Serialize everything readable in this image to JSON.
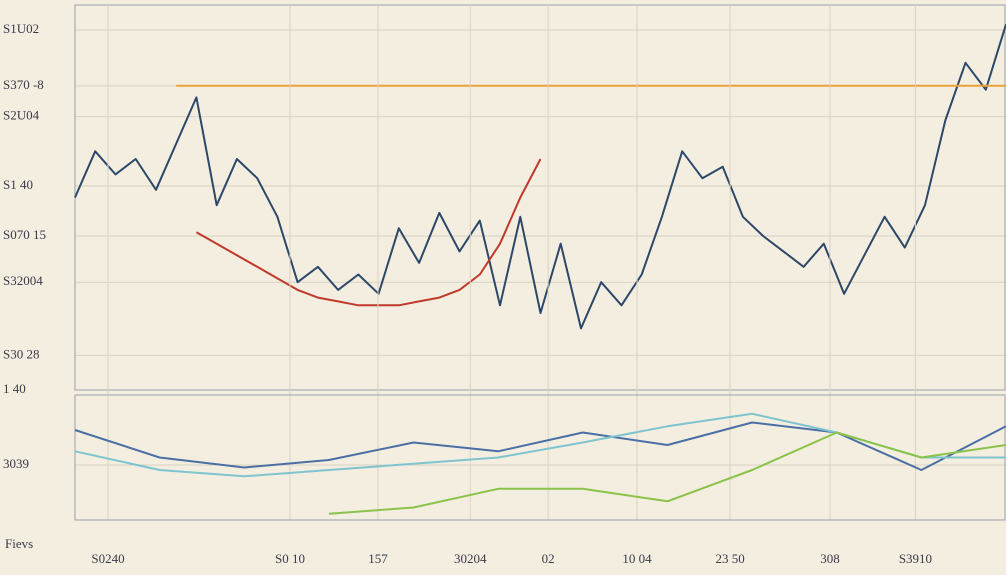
{
  "chart_data": [
    {
      "type": "line",
      "x": [
        0,
        1,
        2,
        3,
        4,
        5,
        6,
        7,
        8,
        9,
        10,
        11,
        12,
        13,
        14,
        15,
        16,
        17,
        18,
        19,
        20,
        21,
        22,
        23,
        24,
        25,
        26,
        27,
        28,
        29,
        30,
        31,
        32,
        33,
        34,
        35,
        36,
        37,
        38,
        39,
        40,
        41,
        42,
        43,
        44,
        45,
        46
      ],
      "xlim": [
        0,
        46
      ],
      "ylim": [
        0,
        100
      ],
      "yticks": [
        {
          "value": 93.5,
          "label": "S1U02"
        },
        {
          "value": 79,
          "label": "S370 -8"
        },
        {
          "value": 71,
          "label": "S2U04"
        },
        {
          "value": 53,
          "label": "S1 40"
        },
        {
          "value": 40,
          "label": "S070 15"
        },
        {
          "value": 28,
          "label": "S32004"
        },
        {
          "value": 9,
          "label": "S30 28"
        },
        {
          "value": 0,
          "label": "1 40"
        }
      ],
      "grid": true,
      "series": [
        {
          "name": "navy",
          "color": "#2c4868",
          "values": [
            50,
            62,
            56,
            60,
            52,
            64,
            76,
            48,
            60,
            55,
            45,
            28,
            32,
            26,
            30,
            25,
            42,
            33,
            46,
            36,
            44,
            22,
            45,
            20,
            38,
            16,
            28,
            22,
            30,
            45,
            62,
            55,
            58,
            45,
            40,
            36,
            32,
            38,
            25,
            35,
            45,
            37,
            48,
            70,
            85,
            78,
            95
          ]
        },
        {
          "name": "red",
          "color": "#c0392b",
          "values": [
            null,
            null,
            null,
            null,
            null,
            null,
            41,
            38,
            35,
            32,
            29,
            26,
            24,
            23,
            22,
            22,
            22,
            23,
            24,
            26,
            30,
            38,
            50,
            60,
            null,
            null,
            null,
            null,
            null,
            null,
            null,
            null,
            null,
            null,
            null,
            null,
            null,
            null,
            null,
            null,
            null,
            null,
            null,
            null,
            null,
            null,
            null
          ]
        },
        {
          "name": "orange",
          "color": "#e8a23a",
          "values": [
            null,
            null,
            null,
            null,
            null,
            79,
            79,
            79,
            79,
            79,
            79,
            79,
            79,
            79,
            79,
            79,
            79,
            79,
            79,
            79,
            79,
            79,
            79,
            79,
            79,
            79,
            79,
            79,
            79,
            79,
            79,
            79,
            79,
            79,
            79,
            79,
            79,
            79,
            79,
            79,
            79,
            79,
            79,
            79,
            79,
            79,
            79
          ]
        }
      ]
    },
    {
      "type": "line",
      "x": [
        0,
        1,
        2,
        3,
        4,
        5,
        6,
        7,
        8,
        9,
        10,
        11
      ],
      "xlim": [
        0,
        11
      ],
      "ylim": [
        0,
        100
      ],
      "yticks": [
        {
          "value": 44,
          "label": "3039"
        }
      ],
      "xticks": [
        {
          "value": 0.39,
          "label": "S0240"
        },
        {
          "value": 2.54,
          "label": "S0 10"
        },
        {
          "value": 3.58,
          "label": "157"
        },
        {
          "value": 4.67,
          "label": "30204"
        },
        {
          "value": 5.59,
          "label": "02"
        },
        {
          "value": 6.64,
          "label": "10 04"
        },
        {
          "value": 7.74,
          "label": "23 50"
        },
        {
          "value": 8.92,
          "label": "308"
        },
        {
          "value": 9.93,
          "label": "S3910"
        }
      ],
      "xlabel": "Fievs",
      "grid": true,
      "series": [
        {
          "name": "blue",
          "color": "#4a6fa5",
          "values": [
            72,
            50,
            42,
            48,
            62,
            55,
            70,
            60,
            78,
            70,
            40,
            75
          ]
        },
        {
          "name": "teal",
          "color": "#7ec4cf",
          "values": [
            55,
            40,
            35,
            40,
            45,
            50,
            62,
            75,
            85,
            70,
            50,
            50
          ]
        },
        {
          "name": "green",
          "color": "#8bc34a",
          "values": [
            null,
            null,
            null,
            5,
            10,
            25,
            25,
            15,
            40,
            70,
            50,
            60
          ]
        }
      ]
    }
  ]
}
